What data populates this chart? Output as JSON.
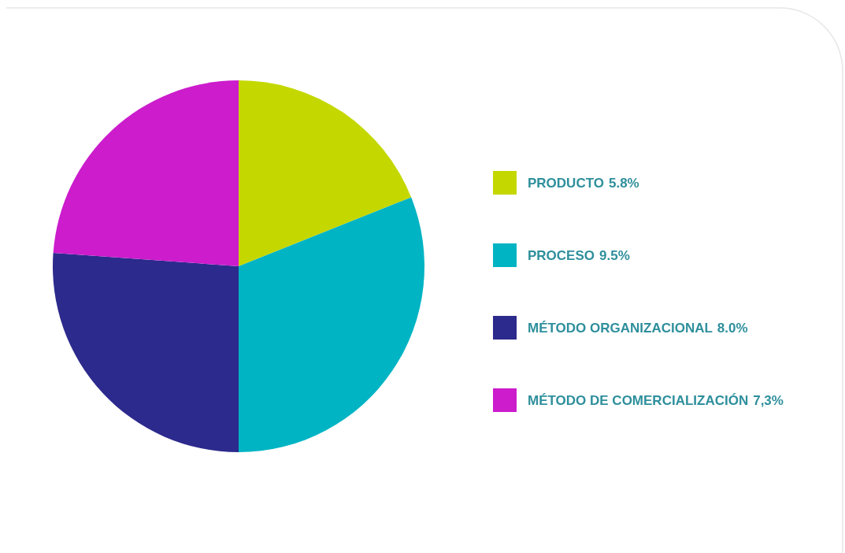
{
  "chart_data": {
    "type": "pie",
    "categories": [
      "PRODUCTO",
      "PROCESO",
      "MÉTODO ORGANIZACIONAL",
      "MÉTODO DE COMERCIALIZACIÓN"
    ],
    "values": [
      5.8,
      9.5,
      8.0,
      7.3
    ],
    "value_labels": [
      "5.8%",
      "9.5%",
      "8.0%",
      "7,3%"
    ],
    "colors": [
      "#c4d800",
      "#00b4c4",
      "#2c2a8c",
      "#cc1ccc"
    ],
    "legend": "right"
  }
}
